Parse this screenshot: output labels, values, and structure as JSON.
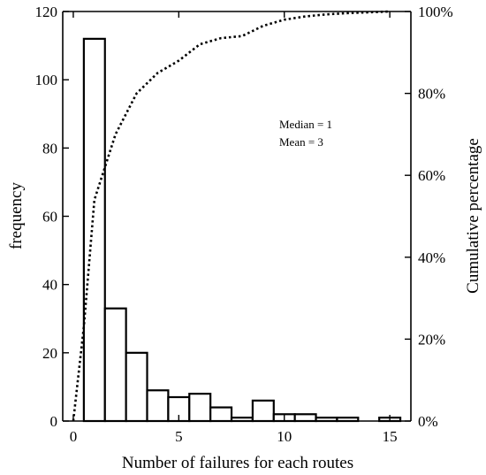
{
  "chart_data": {
    "type": "bar",
    "title": "",
    "xlabel": "Number of failures  for each routes",
    "ylabel": "frequency",
    "y2label": "Cumulative percentage",
    "xlim": [
      -0.5,
      16
    ],
    "ylim": [
      0,
      120
    ],
    "y2lim": [
      0,
      100
    ],
    "x_ticks": [
      0,
      5,
      10,
      15
    ],
    "y_ticks": [
      0,
      20,
      40,
      60,
      80,
      100,
      120
    ],
    "y2_ticks": [
      "0%",
      "20%",
      "40%",
      "60%",
      "80%",
      "100%"
    ],
    "y2_tick_values": [
      0,
      20,
      40,
      60,
      80,
      100
    ],
    "bar_width": 1,
    "bars": [
      {
        "x": 1,
        "frequency": 112
      },
      {
        "x": 2,
        "frequency": 33
      },
      {
        "x": 3,
        "frequency": 20
      },
      {
        "x": 4,
        "frequency": 9
      },
      {
        "x": 5,
        "frequency": 7
      },
      {
        "x": 6,
        "frequency": 8
      },
      {
        "x": 7,
        "frequency": 4
      },
      {
        "x": 8,
        "frequency": 1
      },
      {
        "x": 9,
        "frequency": 6
      },
      {
        "x": 10,
        "frequency": 2
      },
      {
        "x": 11,
        "frequency": 2
      },
      {
        "x": 12,
        "frequency": 1
      },
      {
        "x": 13,
        "frequency": 1
      },
      {
        "x": 14,
        "frequency": 0
      },
      {
        "x": 15,
        "frequency": 1
      }
    ],
    "cumulative_series": {
      "style": "dotted",
      "points": [
        {
          "x": 0,
          "y": 0
        },
        {
          "x": 0.5,
          "y": 23
        },
        {
          "x": 1,
          "y": 54
        },
        {
          "x": 1.5,
          "y": 62
        },
        {
          "x": 2,
          "y": 70
        },
        {
          "x": 3,
          "y": 80
        },
        {
          "x": 4,
          "y": 85
        },
        {
          "x": 5,
          "y": 88
        },
        {
          "x": 6,
          "y": 92
        },
        {
          "x": 7,
          "y": 93.5
        },
        {
          "x": 8,
          "y": 94
        },
        {
          "x": 9,
          "y": 96.5
        },
        {
          "x": 10,
          "y": 98
        },
        {
          "x": 11,
          "y": 98.8
        },
        {
          "x": 12,
          "y": 99.3
        },
        {
          "x": 13,
          "y": 99.6
        },
        {
          "x": 14,
          "y": 99.8
        },
        {
          "x": 15,
          "y": 100
        }
      ]
    },
    "annotations": [
      "Median = 1",
      "Mean = 3"
    ],
    "grid": false,
    "legend": "none"
  }
}
